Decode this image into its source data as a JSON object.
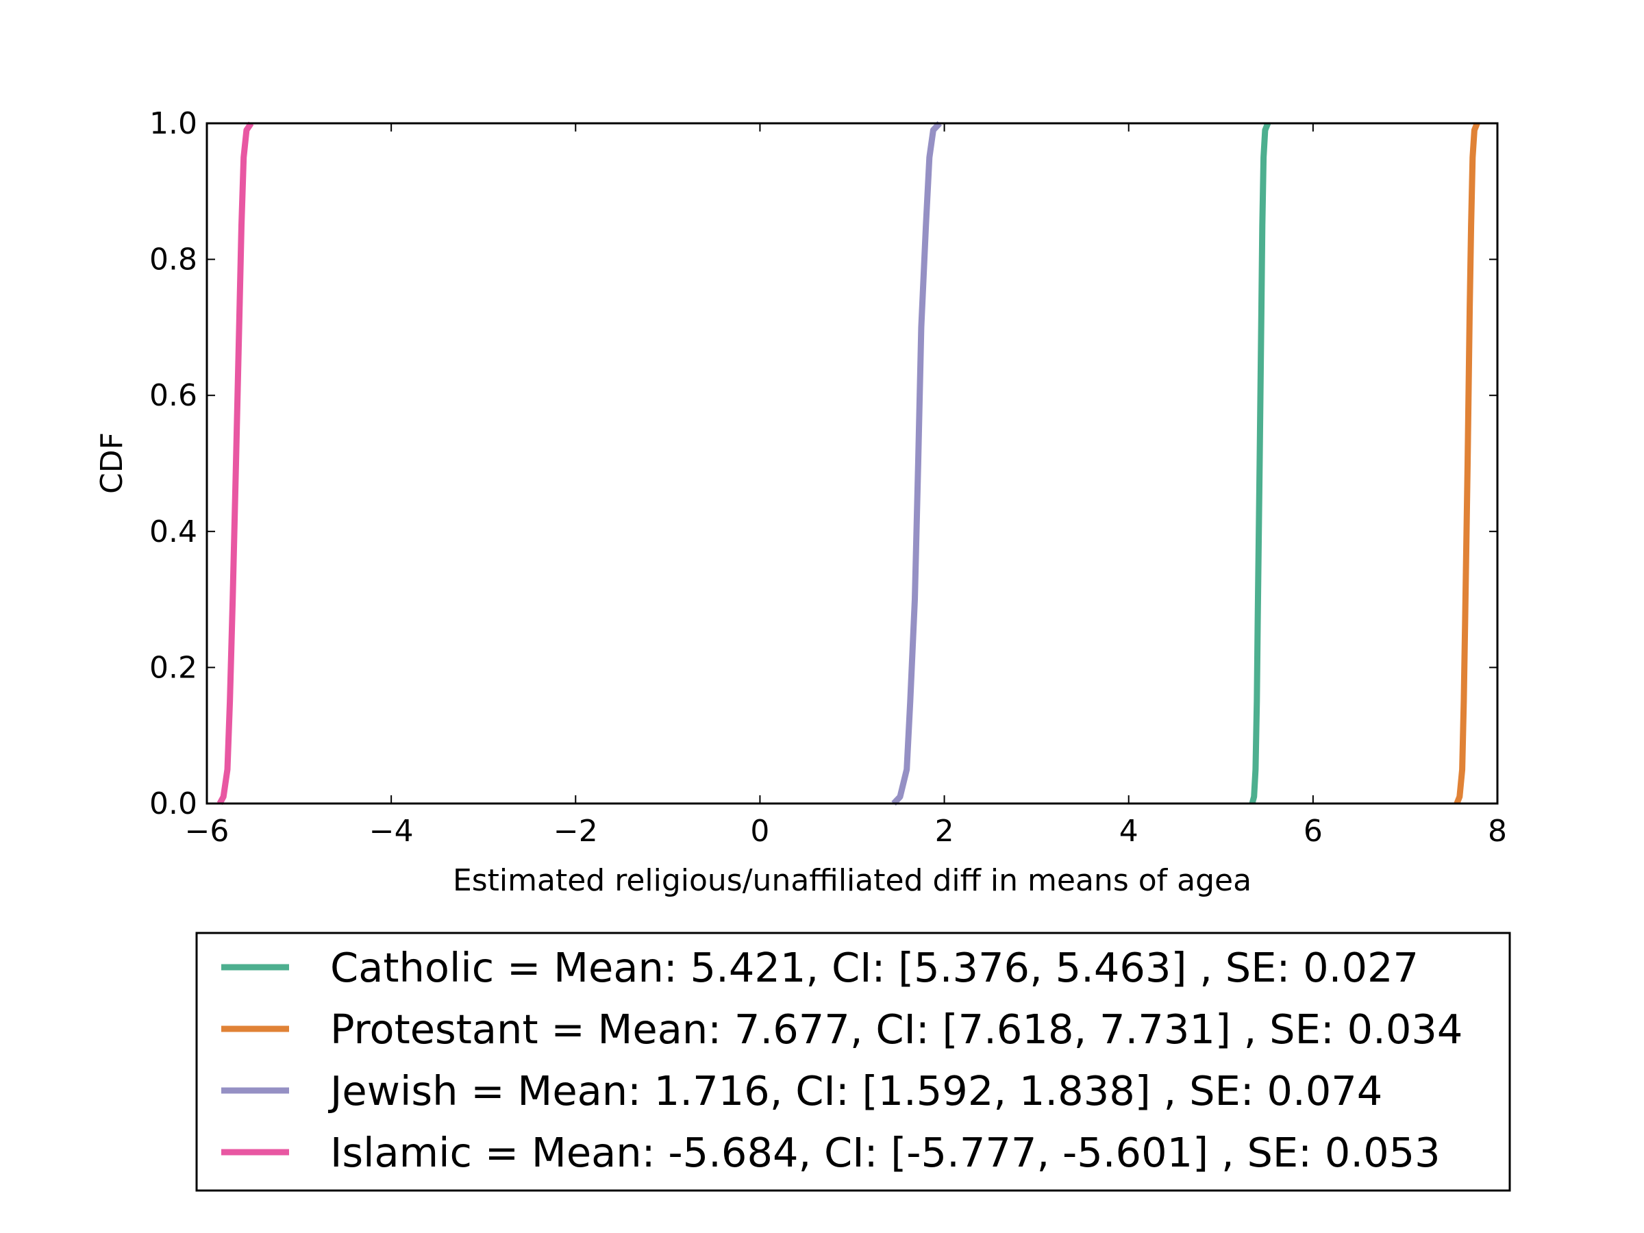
{
  "chart_data": {
    "type": "line",
    "xlabel": "Estimated religious/unaffiliated diff in means of agea",
    "ylabel": "CDF",
    "xlim": [
      -6,
      8
    ],
    "ylim": [
      0,
      1
    ],
    "x_ticks": [
      -6,
      -4,
      -2,
      0,
      2,
      4,
      6,
      8
    ],
    "x_tick_labels": [
      "−6",
      "−4",
      "−2",
      "0",
      "2",
      "4",
      "6",
      "8"
    ],
    "y_ticks": [
      0,
      0.2,
      0.4,
      0.6,
      0.8,
      1
    ],
    "y_tick_labels": [
      "0.0",
      "0.2",
      "0.4",
      "0.6",
      "0.8",
      "1.0"
    ],
    "grid": false,
    "legend_position": "below plot",
    "series": [
      {
        "name": "Catholic = Mean: 5.421, CI: [5.376, 5.463] , SE: 0.027",
        "color": "#4daf8f",
        "points": [
          [
            5.34,
            0.0
          ],
          [
            5.36,
            0.01
          ],
          [
            5.376,
            0.05
          ],
          [
            5.39,
            0.15
          ],
          [
            5.4,
            0.27
          ],
          [
            5.421,
            0.5
          ],
          [
            5.44,
            0.73
          ],
          [
            5.45,
            0.85
          ],
          [
            5.463,
            0.95
          ],
          [
            5.48,
            0.99
          ],
          [
            5.51,
            1.0
          ]
        ]
      },
      {
        "name": "Protestant = Mean: 7.677, CI: [7.618, 7.731] , SE: 0.034",
        "color": "#e08236",
        "points": [
          [
            7.56,
            0.0
          ],
          [
            7.59,
            0.01
          ],
          [
            7.618,
            0.05
          ],
          [
            7.635,
            0.15
          ],
          [
            7.65,
            0.27
          ],
          [
            7.677,
            0.5
          ],
          [
            7.7,
            0.73
          ],
          [
            7.715,
            0.85
          ],
          [
            7.731,
            0.95
          ],
          [
            7.75,
            0.99
          ],
          [
            7.78,
            1.0
          ]
        ]
      },
      {
        "name": "Jewish = Mean: 1.716, CI: [1.592, 1.838] , SE: 0.074",
        "color": "#9590c4",
        "points": [
          [
            1.45,
            0.0
          ],
          [
            1.52,
            0.01
          ],
          [
            1.592,
            0.05
          ],
          [
            1.63,
            0.15
          ],
          [
            1.68,
            0.3
          ],
          [
            1.716,
            0.5
          ],
          [
            1.75,
            0.7
          ],
          [
            1.8,
            0.85
          ],
          [
            1.838,
            0.95
          ],
          [
            1.88,
            0.99
          ],
          [
            1.95,
            1.0
          ]
        ]
      },
      {
        "name": "Islamic = Mean: -5.684, CI: [-5.777, -5.601] , SE: 0.053",
        "color": "#e857a2",
        "points": [
          [
            -5.86,
            0.0
          ],
          [
            -5.82,
            0.01
          ],
          [
            -5.777,
            0.05
          ],
          [
            -5.75,
            0.15
          ],
          [
            -5.72,
            0.3
          ],
          [
            -5.684,
            0.5
          ],
          [
            -5.65,
            0.7
          ],
          [
            -5.625,
            0.85
          ],
          [
            -5.601,
            0.95
          ],
          [
            -5.57,
            0.99
          ],
          [
            -5.52,
            1.0
          ]
        ]
      }
    ]
  }
}
